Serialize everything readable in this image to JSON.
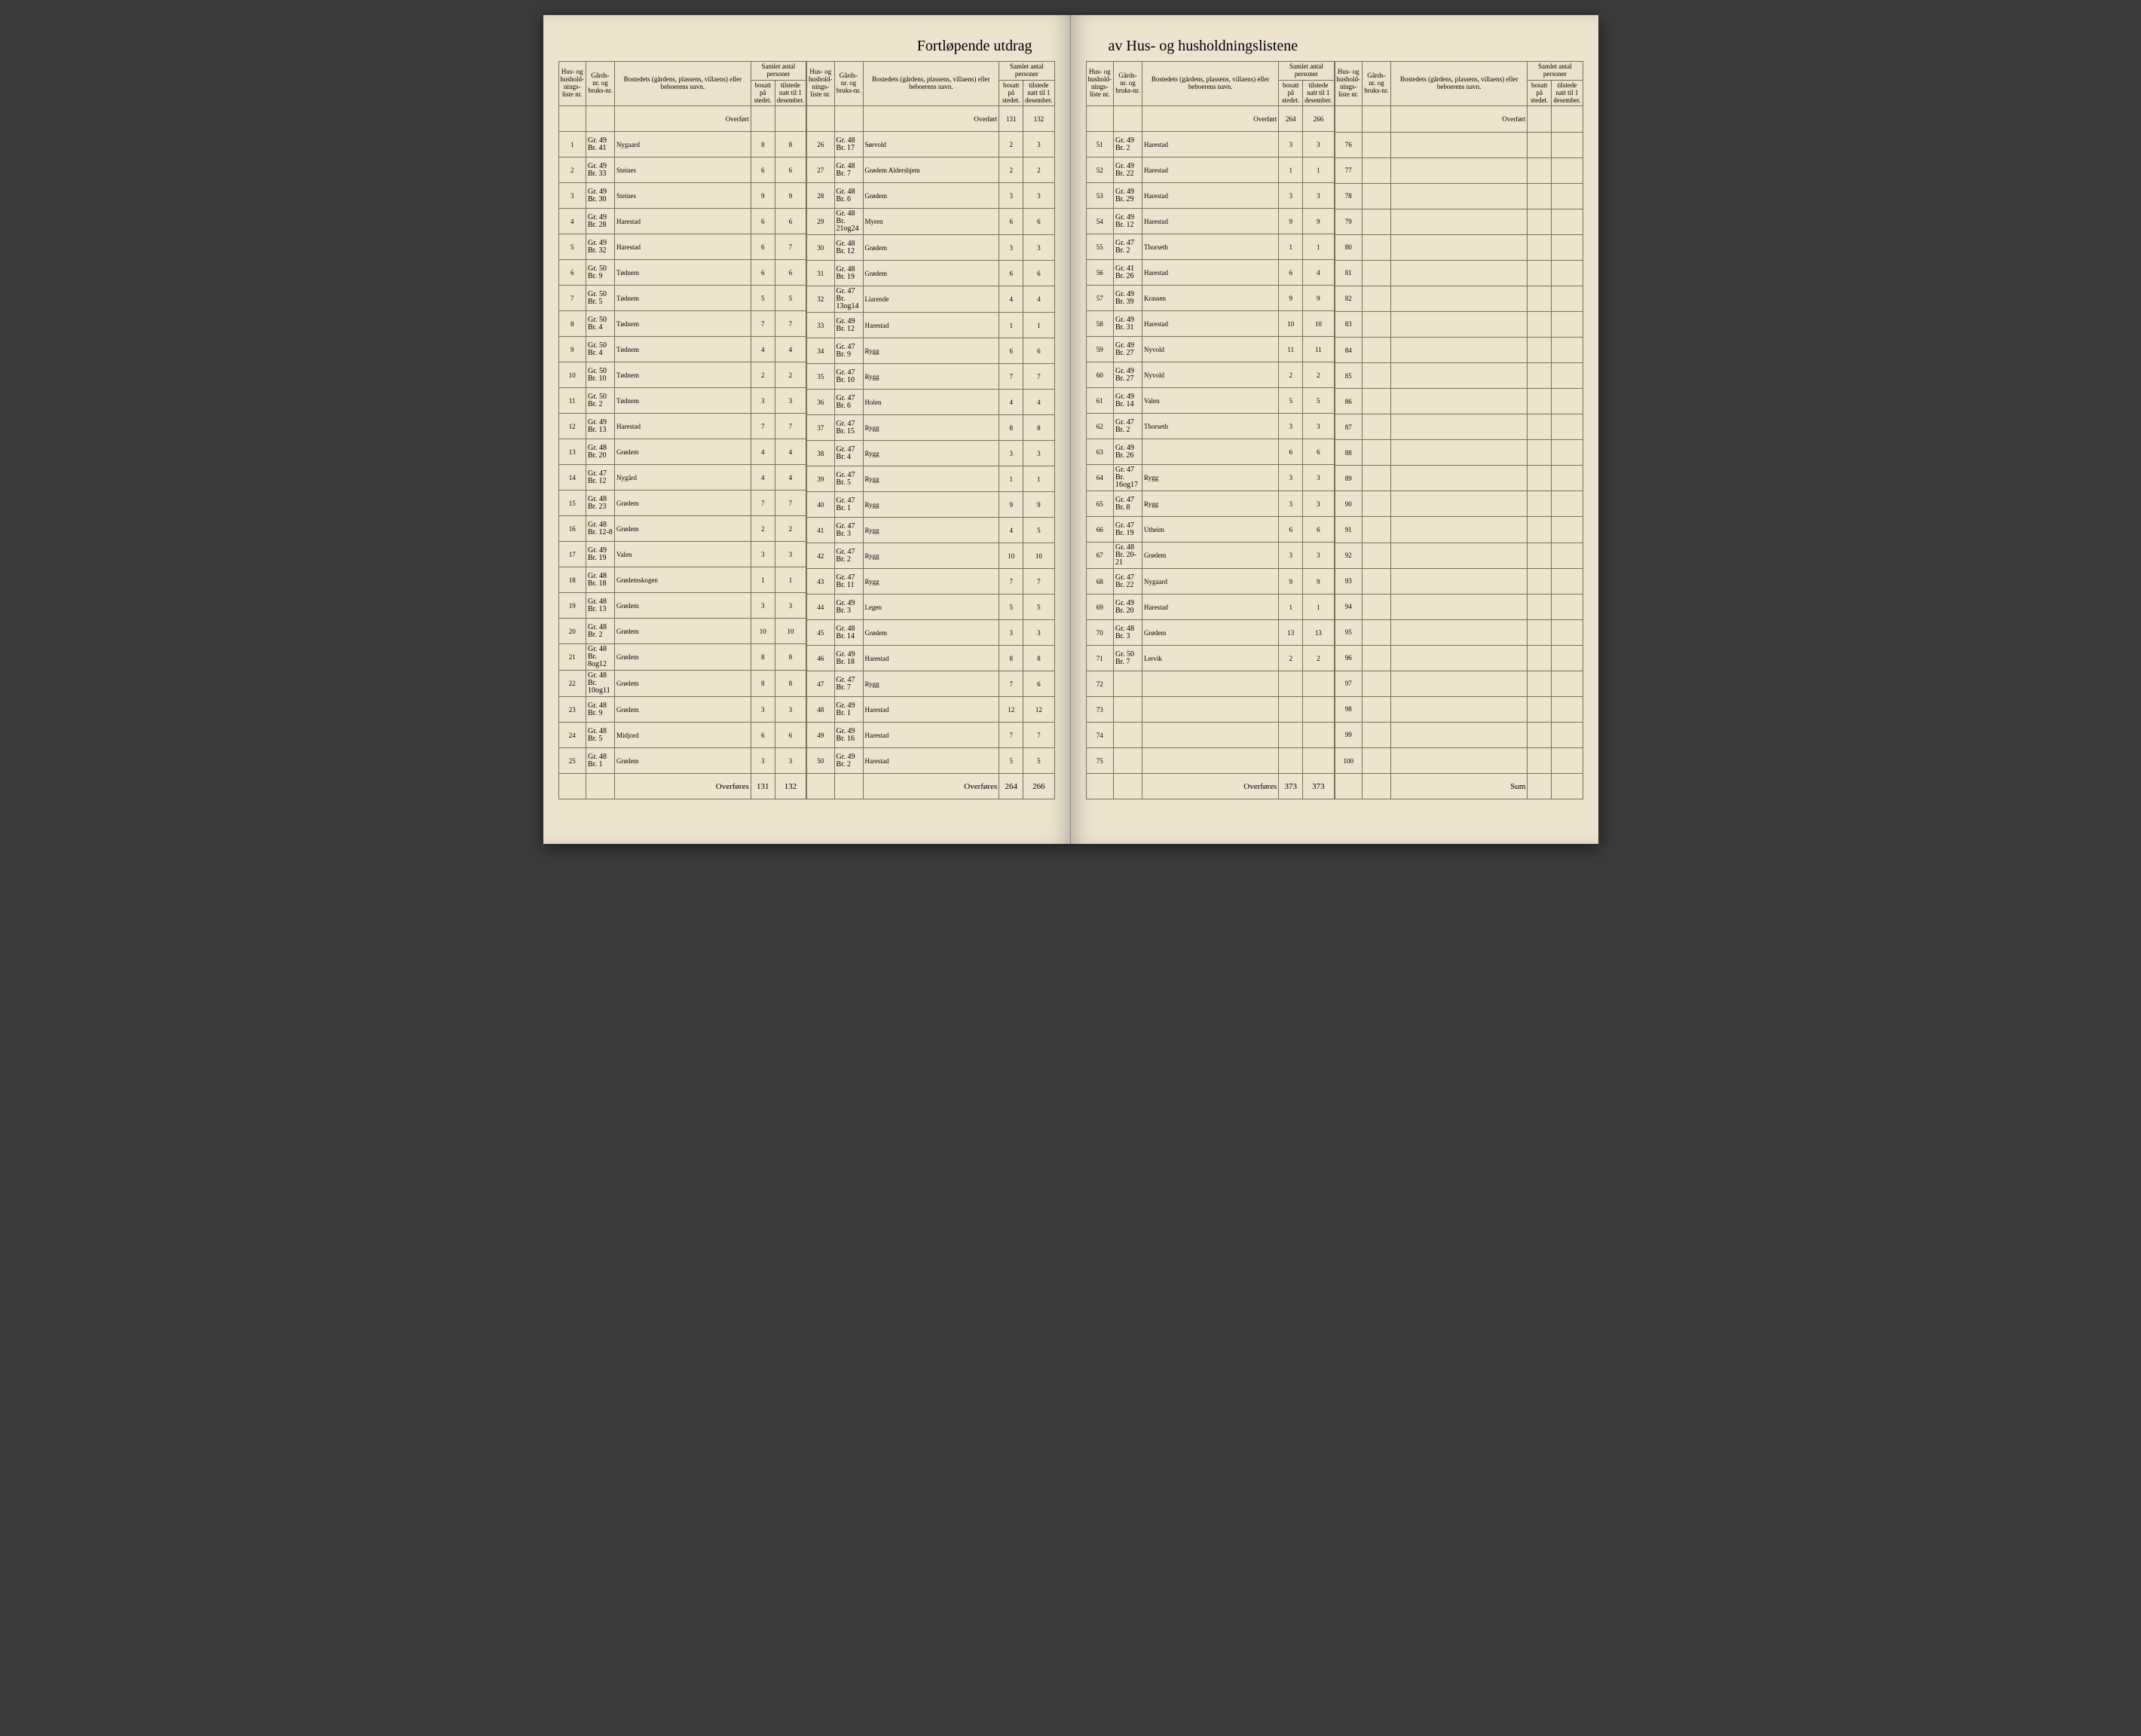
{
  "title_left": "Fortløpende utdrag",
  "title_right": "av Hus- og husholdningslistene",
  "headers": {
    "hus": "Hus- og hushold-nings-liste nr.",
    "gards": "Gårds-nr. og bruks-nr.",
    "bosted": "Bostedets (gårdens, plassens, villaens) eller beboerens navn.",
    "samlet": "Samlet antal personer",
    "bosatt": "bosatt på stedet.",
    "tilstede": "tilstede natt til 1 desember."
  },
  "overfort": "Overført",
  "overfores": "Overføres",
  "sum": "Sum",
  "carry": {
    "c2": {
      "b": "131",
      "t": "132"
    },
    "c3": {
      "b": "264",
      "t": "266"
    }
  },
  "totals": {
    "c1": {
      "b": "131",
      "t": "132"
    },
    "c2": {
      "b": "264",
      "t": "266"
    },
    "c3": {
      "b": "373",
      "t": "373"
    }
  },
  "col1": [
    {
      "n": "1",
      "g1": "Gr. 49",
      "g2": "Br. 41",
      "name": "Nygaard",
      "b": "8",
      "t": "8"
    },
    {
      "n": "2",
      "g1": "Gr. 49",
      "g2": "Br. 33",
      "name": "Steines",
      "b": "6",
      "t": "6"
    },
    {
      "n": "3",
      "g1": "Gr. 49",
      "g2": "Br. 30",
      "name": "Steines",
      "b": "9",
      "t": "9"
    },
    {
      "n": "4",
      "g1": "Gr. 49",
      "g2": "Br. 28",
      "name": "Harestad",
      "b": "6",
      "t": "6"
    },
    {
      "n": "5",
      "g1": "Gr. 49",
      "g2": "Br. 32",
      "name": "Harestad",
      "b": "6",
      "t": "7"
    },
    {
      "n": "6",
      "g1": "Gr. 50",
      "g2": "Br. 9",
      "name": "Tødnem",
      "b": "6",
      "t": "6"
    },
    {
      "n": "7",
      "g1": "Gr. 50",
      "g2": "Br. 5",
      "name": "Tødnem",
      "b": "5",
      "t": "5"
    },
    {
      "n": "8",
      "g1": "Gr. 50",
      "g2": "Br. 4",
      "name": "Tødnem",
      "b": "7",
      "t": "7"
    },
    {
      "n": "9",
      "g1": "Gr. 50",
      "g2": "Br. 4",
      "name": "Tødnem",
      "b": "4",
      "t": "4"
    },
    {
      "n": "10",
      "g1": "Gr. 50",
      "g2": "Br. 10",
      "name": "Tødnem",
      "b": "2",
      "t": "2"
    },
    {
      "n": "11",
      "g1": "Gr. 50",
      "g2": "Br. 2",
      "name": "Tødnem",
      "b": "3",
      "t": "3"
    },
    {
      "n": "12",
      "g1": "Gr. 49",
      "g2": "Br. 13",
      "name": "Harestad",
      "b": "7",
      "t": "7"
    },
    {
      "n": "13",
      "g1": "Gr. 48",
      "g2": "Br. 20",
      "name": "Grødem",
      "b": "4",
      "t": "4"
    },
    {
      "n": "14",
      "g1": "Gr. 47",
      "g2": "Br. 12",
      "name": "Nygård",
      "b": "4",
      "t": "4"
    },
    {
      "n": "15",
      "g1": "Gr. 48",
      "g2": "Br. 23",
      "name": "Grødem",
      "b": "7",
      "t": "7"
    },
    {
      "n": "16",
      "g1": "Gr. 48",
      "g2": "Br. 12-8",
      "name": "Grødem",
      "b": "2",
      "t": "2"
    },
    {
      "n": "17",
      "g1": "Gr. 49",
      "g2": "Br. 19",
      "name": "Valen",
      "b": "3",
      "t": "3"
    },
    {
      "n": "18",
      "g1": "Gr. 48",
      "g2": "Br. 18",
      "name": "Grødemskogen",
      "b": "1",
      "t": "1"
    },
    {
      "n": "19",
      "g1": "Gr. 48",
      "g2": "Br. 13",
      "name": "Grødem",
      "b": "3",
      "t": "3"
    },
    {
      "n": "20",
      "g1": "Gr. 48",
      "g2": "Br. 2",
      "name": "Grødem",
      "b": "10",
      "t": "10"
    },
    {
      "n": "21",
      "g1": "Gr. 48",
      "g2": "Br. 8og12",
      "name": "Grødem",
      "b": "8",
      "t": "8"
    },
    {
      "n": "22",
      "g1": "Gr. 48",
      "g2": "Br. 10og11",
      "name": "Grødem",
      "b": "8",
      "t": "8"
    },
    {
      "n": "23",
      "g1": "Gr. 48",
      "g2": "Br. 9",
      "name": "Grødem",
      "b": "3",
      "t": "3"
    },
    {
      "n": "24",
      "g1": "Gr. 48",
      "g2": "Br. 5",
      "name": "Midjord",
      "b": "6",
      "t": "6"
    },
    {
      "n": "25",
      "g1": "Gr. 48",
      "g2": "Br. 1",
      "name": "Grødem",
      "b": "3",
      "t": "3"
    }
  ],
  "col2": [
    {
      "n": "26",
      "g1": "Gr. 48",
      "g2": "Br. 17",
      "name": "Sørvold",
      "b": "2",
      "t": "3"
    },
    {
      "n": "27",
      "g1": "Gr. 48",
      "g2": "Br. 7",
      "name": "Grødem Aldershjem",
      "b": "2",
      "t": "2"
    },
    {
      "n": "28",
      "g1": "Gr. 48",
      "g2": "Br. 6",
      "name": "Grødem",
      "b": "3",
      "t": "3"
    },
    {
      "n": "29",
      "g1": "Gr. 48",
      "g2": "Br. 21og24",
      "name": "Myren",
      "b": "6",
      "t": "6"
    },
    {
      "n": "30",
      "g1": "Gr. 48",
      "g2": "Br. 12",
      "name": "Grødem",
      "b": "3",
      "t": "3"
    },
    {
      "n": "31",
      "g1": "Gr. 48",
      "g2": "Br. 19",
      "name": "Grødem",
      "b": "6",
      "t": "6"
    },
    {
      "n": "32",
      "g1": "Gr. 47",
      "g2": "Br. 13og14",
      "name": "Liarende",
      "b": "4",
      "t": "4"
    },
    {
      "n": "33",
      "g1": "Gr. 49",
      "g2": "Br. 12",
      "name": "Harestad",
      "b": "1",
      "t": "1"
    },
    {
      "n": "34",
      "g1": "Gr. 47",
      "g2": "Br. 9",
      "name": "Rygg",
      "b": "6",
      "t": "6"
    },
    {
      "n": "35",
      "g1": "Gr. 47",
      "g2": "Br. 10",
      "name": "Rygg",
      "b": "7",
      "t": "7"
    },
    {
      "n": "36",
      "g1": "Gr. 47",
      "g2": "Br. 6",
      "name": "Holen",
      "b": "4",
      "t": "4"
    },
    {
      "n": "37",
      "g1": "Gr. 47",
      "g2": "Br. 15",
      "name": "Rygg",
      "b": "8",
      "t": "8"
    },
    {
      "n": "38",
      "g1": "Gr. 47",
      "g2": "Br. 4",
      "name": "Rygg",
      "b": "3",
      "t": "3"
    },
    {
      "n": "39",
      "g1": "Gr. 47",
      "g2": "Br. 5",
      "name": "Rygg",
      "b": "1",
      "t": "1"
    },
    {
      "n": "40",
      "g1": "Gr. 47",
      "g2": "Br. 1",
      "name": "Rygg",
      "b": "9",
      "t": "9"
    },
    {
      "n": "41",
      "g1": "Gr. 47",
      "g2": "Br. 3",
      "name": "Rygg",
      "b": "4",
      "t": "5"
    },
    {
      "n": "42",
      "g1": "Gr. 47",
      "g2": "Br. 2",
      "name": "Rygg",
      "b": "10",
      "t": "10"
    },
    {
      "n": "43",
      "g1": "Gr. 47",
      "g2": "Br. 11",
      "name": "Rygg",
      "b": "7",
      "t": "7"
    },
    {
      "n": "44",
      "g1": "Gr. 49",
      "g2": "Br. 3",
      "name": "Legen",
      "b": "5",
      "t": "5"
    },
    {
      "n": "45",
      "g1": "Gr. 48",
      "g2": "Br. 14",
      "name": "Grødem",
      "b": "3",
      "t": "3"
    },
    {
      "n": "46",
      "g1": "Gr. 49",
      "g2": "Br. 18",
      "name": "Harestad",
      "b": "8",
      "t": "8"
    },
    {
      "n": "47",
      "g1": "Gr. 47",
      "g2": "Br. 7",
      "name": "Rygg",
      "b": "7",
      "t": "6"
    },
    {
      "n": "48",
      "g1": "Gr. 49",
      "g2": "Br. 1",
      "name": "Harestad",
      "b": "12",
      "t": "12"
    },
    {
      "n": "49",
      "g1": "Gr. 49",
      "g2": "Br. 16",
      "name": "Harestad",
      "b": "7",
      "t": "7"
    },
    {
      "n": "50",
      "g1": "Gr. 49",
      "g2": "Br. 2",
      "name": "Harestad",
      "b": "5",
      "t": "5"
    }
  ],
  "col3": [
    {
      "n": "51",
      "g1": "Gr. 49",
      "g2": "Br. 2",
      "name": "Harestad",
      "b": "3",
      "t": "3"
    },
    {
      "n": "52",
      "g1": "Gr. 49",
      "g2": "Br. 22",
      "name": "Harestad",
      "b": "1",
      "t": "1"
    },
    {
      "n": "53",
      "g1": "Gr. 49",
      "g2": "Br. 29",
      "name": "Harestad",
      "b": "3",
      "t": "3"
    },
    {
      "n": "54",
      "g1": "Gr. 49",
      "g2": "Br. 12",
      "name": "Harestad",
      "b": "9",
      "t": "9"
    },
    {
      "n": "55",
      "g1": "Gr. 47",
      "g2": "Br. 2",
      "name": "Thorseth",
      "b": "1",
      "t": "1"
    },
    {
      "n": "56",
      "g1": "Gr. 41",
      "g2": "Br. 26",
      "name": "Harestad",
      "b": "6",
      "t": "4"
    },
    {
      "n": "57",
      "g1": "Gr. 49",
      "g2": "Br. 39",
      "name": "Krassen",
      "b": "9",
      "t": "9"
    },
    {
      "n": "58",
      "g1": "Gr. 49",
      "g2": "Br. 31",
      "name": "Harestad",
      "b": "10",
      "t": "10"
    },
    {
      "n": "59",
      "g1": "Gr. 49",
      "g2": "Br. 27",
      "name": "Nyvold",
      "b": "11",
      "t": "11"
    },
    {
      "n": "60",
      "g1": "Gr. 49",
      "g2": "Br. 27",
      "name": "Nyvold",
      "b": "2",
      "t": "2"
    },
    {
      "n": "61",
      "g1": "Gr. 49",
      "g2": "Br. 14",
      "name": "Valen",
      "b": "5",
      "t": "5"
    },
    {
      "n": "62",
      "g1": "Gr. 47",
      "g2": "Br. 2",
      "name": "Thorseth",
      "b": "3",
      "t": "3"
    },
    {
      "n": "63",
      "g1": "Gr. 49",
      "g2": "Br. 26",
      "name": "",
      "b": "6",
      "t": "6"
    },
    {
      "n": "64",
      "g1": "Gr. 47",
      "g2": "Br. 16og17",
      "name": "Rygg",
      "b": "3",
      "t": "3"
    },
    {
      "n": "65",
      "g1": "Gr. 47",
      "g2": "Br. 8",
      "name": "Rygg",
      "b": "3",
      "t": "3"
    },
    {
      "n": "66",
      "g1": "Gr. 47",
      "g2": "Br. 19",
      "name": "Utheim",
      "b": "6",
      "t": "6"
    },
    {
      "n": "67",
      "g1": "Gr. 48",
      "g2": "Br. 20-21",
      "name": "Grødem",
      "b": "3",
      "t": "3"
    },
    {
      "n": "68",
      "g1": "Gr. 47",
      "g2": "Br. 22",
      "name": "Nygaard",
      "b": "9",
      "t": "9"
    },
    {
      "n": "69",
      "g1": "Gr. 49",
      "g2": "Br. 20",
      "name": "Harestad",
      "b": "1",
      "t": "1"
    },
    {
      "n": "70",
      "g1": "Gr. 48",
      "g2": "Br. 3",
      "name": "Grødem",
      "b": "13",
      "t": "13"
    },
    {
      "n": "71",
      "g1": "Gr. 50",
      "g2": "Br. 7",
      "name": "Lervik",
      "b": "2",
      "t": "2"
    },
    {
      "n": "72",
      "g1": "",
      "g2": "",
      "name": "",
      "b": "",
      "t": ""
    },
    {
      "n": "73",
      "g1": "",
      "g2": "",
      "name": "",
      "b": "",
      "t": ""
    },
    {
      "n": "74",
      "g1": "",
      "g2": "",
      "name": "",
      "b": "",
      "t": ""
    },
    {
      "n": "75",
      "g1": "",
      "g2": "",
      "name": "",
      "b": "",
      "t": ""
    }
  ],
  "col4": [
    {
      "n": "76",
      "g1": "",
      "g2": "",
      "name": "",
      "b": "",
      "t": ""
    },
    {
      "n": "77",
      "g1": "",
      "g2": "",
      "name": "",
      "b": "",
      "t": ""
    },
    {
      "n": "78",
      "g1": "",
      "g2": "",
      "name": "",
      "b": "",
      "t": ""
    },
    {
      "n": "79",
      "g1": "",
      "g2": "",
      "name": "",
      "b": "",
      "t": ""
    },
    {
      "n": "80",
      "g1": "",
      "g2": "",
      "name": "",
      "b": "",
      "t": ""
    },
    {
      "n": "81",
      "g1": "",
      "g2": "",
      "name": "",
      "b": "",
      "t": ""
    },
    {
      "n": "82",
      "g1": "",
      "g2": "",
      "name": "",
      "b": "",
      "t": ""
    },
    {
      "n": "83",
      "g1": "",
      "g2": "",
      "name": "",
      "b": "",
      "t": ""
    },
    {
      "n": "84",
      "g1": "",
      "g2": "",
      "name": "",
      "b": "",
      "t": ""
    },
    {
      "n": "85",
      "g1": "",
      "g2": "",
      "name": "",
      "b": "",
      "t": ""
    },
    {
      "n": "86",
      "g1": "",
      "g2": "",
      "name": "",
      "b": "",
      "t": ""
    },
    {
      "n": "87",
      "g1": "",
      "g2": "",
      "name": "",
      "b": "",
      "t": ""
    },
    {
      "n": "88",
      "g1": "",
      "g2": "",
      "name": "",
      "b": "",
      "t": ""
    },
    {
      "n": "89",
      "g1": "",
      "g2": "",
      "name": "",
      "b": "",
      "t": ""
    },
    {
      "n": "90",
      "g1": "",
      "g2": "",
      "name": "",
      "b": "",
      "t": ""
    },
    {
      "n": "91",
      "g1": "",
      "g2": "",
      "name": "",
      "b": "",
      "t": ""
    },
    {
      "n": "92",
      "g1": "",
      "g2": "",
      "name": "",
      "b": "",
      "t": ""
    },
    {
      "n": "93",
      "g1": "",
      "g2": "",
      "name": "",
      "b": "",
      "t": ""
    },
    {
      "n": "94",
      "g1": "",
      "g2": "",
      "name": "",
      "b": "",
      "t": ""
    },
    {
      "n": "95",
      "g1": "",
      "g2": "",
      "name": "",
      "b": "",
      "t": ""
    },
    {
      "n": "96",
      "g1": "",
      "g2": "",
      "name": "",
      "b": "",
      "t": ""
    },
    {
      "n": "97",
      "g1": "",
      "g2": "",
      "name": "",
      "b": "",
      "t": ""
    },
    {
      "n": "98",
      "g1": "",
      "g2": "",
      "name": "",
      "b": "",
      "t": ""
    },
    {
      "n": "99",
      "g1": "",
      "g2": "",
      "name": "",
      "b": "",
      "t": ""
    },
    {
      "n": "100",
      "g1": "",
      "g2": "",
      "name": "",
      "b": "",
      "t": ""
    }
  ]
}
